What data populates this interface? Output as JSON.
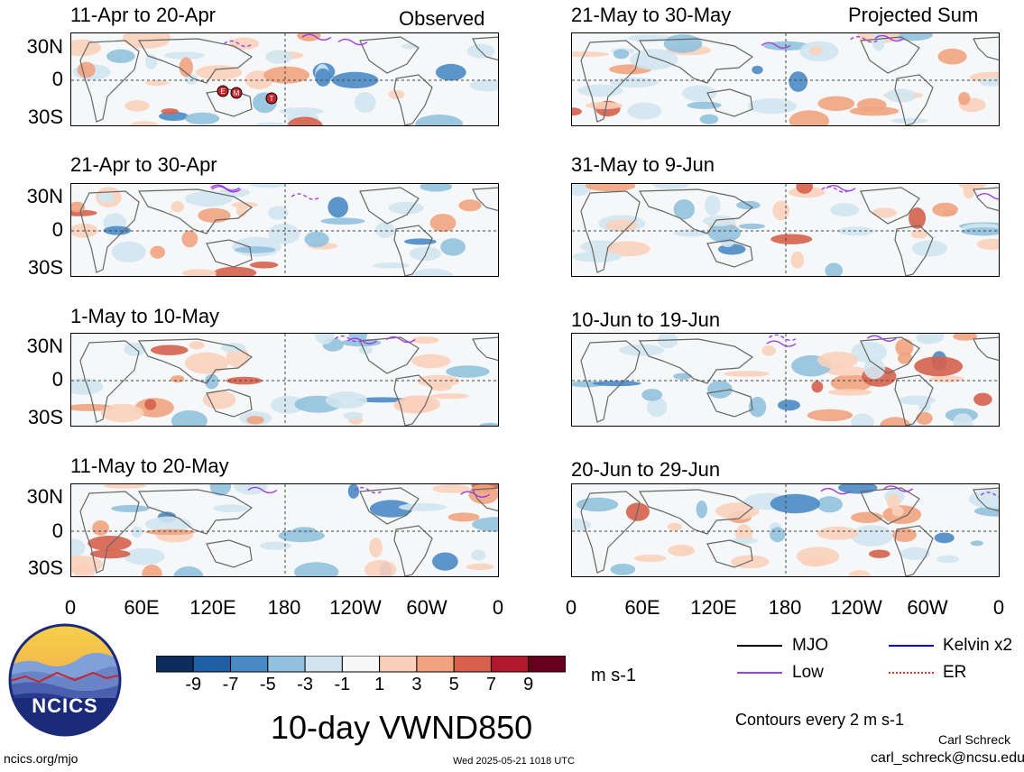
{
  "panels_left": [
    {
      "period": "11-Apr to 20-Apr",
      "tag": "Observed"
    },
    {
      "period": "21-Apr to 30-Apr",
      "tag": ""
    },
    {
      "period": "1-May to 10-May",
      "tag": ""
    },
    {
      "period": "11-May to 20-May",
      "tag": ""
    }
  ],
  "panels_right": [
    {
      "period": "21-May to 30-May",
      "tag": "Projected Sum"
    },
    {
      "period": "31-May to 9-Jun",
      "tag": ""
    },
    {
      "period": "10-Jun to 19-Jun",
      "tag": ""
    },
    {
      "period": "20-Jun to 29-Jun",
      "tag": ""
    }
  ],
  "y_ticks": [
    "30N",
    "0",
    "30S"
  ],
  "x_ticks": [
    "0",
    "60E",
    "120E",
    "180",
    "120W",
    "60W",
    "0"
  ],
  "colorbar": {
    "labels": [
      "-9",
      "-7",
      "-5",
      "-3",
      "-1",
      "1",
      "3",
      "5",
      "7",
      "9"
    ],
    "colors": [
      "#0d2c5e",
      "#1f5fa6",
      "#4a8ac4",
      "#92c1de",
      "#d1e5f0",
      "#f7f7f7",
      "#fbd0bb",
      "#f1a380",
      "#d6604d",
      "#b2182b",
      "#67001f"
    ],
    "units": "m s-1"
  },
  "main_title": "10-day VWND850",
  "legend": {
    "mjo": "MJO",
    "kelvin": "Kelvin x2",
    "low": "Low",
    "er": "ER",
    "colors": {
      "mjo": "#000000",
      "kelvin": "#0000ff",
      "low": "#a040e0",
      "er": "#ff2020"
    }
  },
  "contours_note": "Contours every 2 m s-1",
  "author": "Carl Schreck",
  "email": "carl_schreck@ncsu.edu",
  "site": "ncics.org/mjo",
  "timestamp": "Wed 2025-05-21 1018 UTC",
  "logo_text": "NCICS",
  "storm_markers": [
    "E",
    "M",
    "T"
  ]
}
